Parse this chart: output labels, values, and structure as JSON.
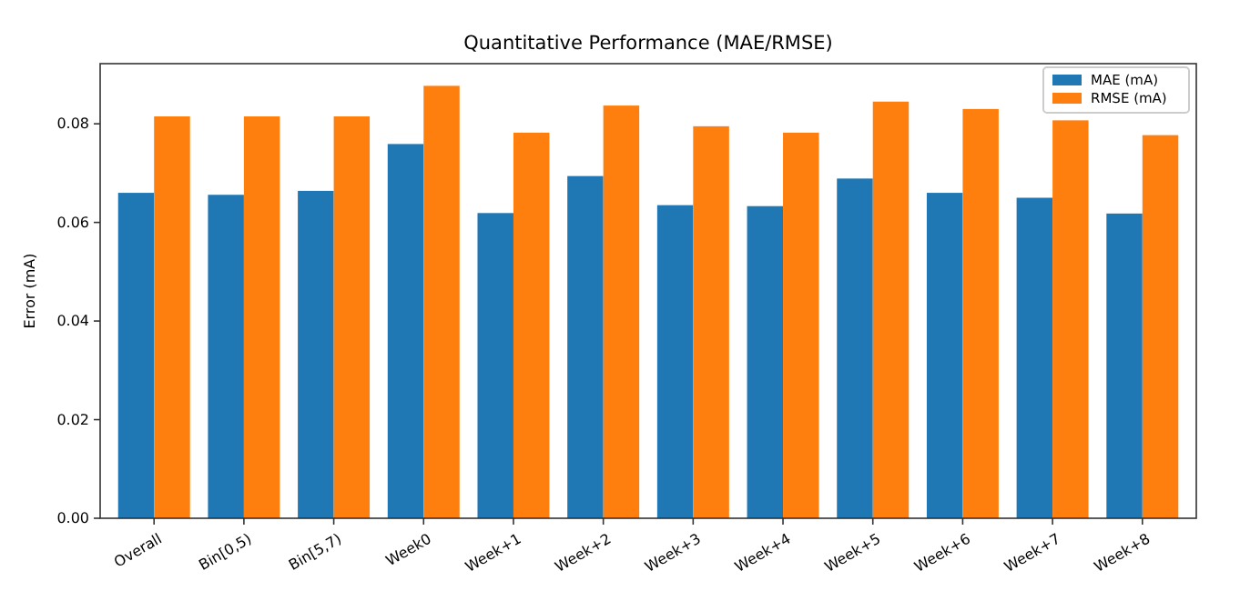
{
  "chart_data": {
    "type": "bar",
    "title": "Quantitative Performance (MAE/RMSE)",
    "ylabel": "Error (mA)",
    "categories": [
      "Overall",
      "Bin[0,5)",
      "Bin[5,7)",
      "Week0",
      "Week+1",
      "Week+2",
      "Week+3",
      "Week+4",
      "Week+5",
      "Week+6",
      "Week+7",
      "Week+8"
    ],
    "series": [
      {
        "name": "MAE (mA)",
        "color": "#1f77b4",
        "values": [
          0.066,
          0.0656,
          0.0664,
          0.0759,
          0.0619,
          0.0694,
          0.0635,
          0.0633,
          0.0689,
          0.066,
          0.065,
          0.0618
        ]
      },
      {
        "name": "RMSE (mA)",
        "color": "#ff7f0e",
        "values": [
          0.0815,
          0.0815,
          0.0815,
          0.0877,
          0.0782,
          0.0837,
          0.0795,
          0.0782,
          0.0845,
          0.083,
          0.0807,
          0.0777
        ]
      }
    ],
    "ylim": [
      0,
      0.0922
    ],
    "yticks": [
      {
        "value": 0,
        "label": "0.00"
      },
      {
        "value": 0.02,
        "label": "0.02"
      },
      {
        "value": 0.04,
        "label": "0.04"
      },
      {
        "value": 0.06,
        "label": "0.06"
      },
      {
        "value": 0.08,
        "label": "0.08"
      }
    ],
    "legend": "top right",
    "grid": false
  }
}
